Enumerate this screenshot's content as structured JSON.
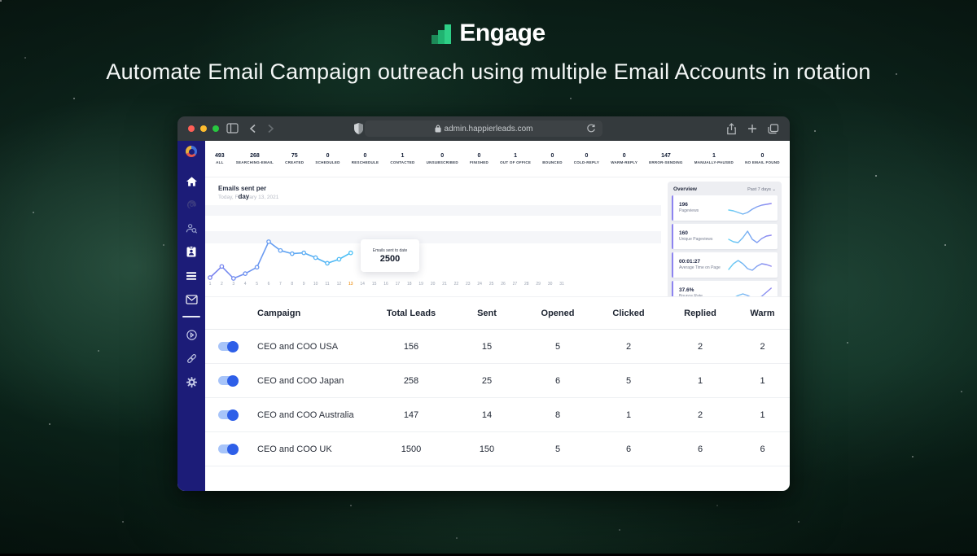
{
  "hero": {
    "brand": "Engage",
    "tagline": "Automate Email Campaign outreach using multiple Email Accounts in rotation",
    "brand_colors": [
      "#1d8a58",
      "#21b371",
      "#2ecf86"
    ]
  },
  "browser": {
    "url": "admin.happierleads.com",
    "traffic_lights": [
      "#ff5f57",
      "#febc2e",
      "#28c840"
    ]
  },
  "stats": [
    {
      "value": "493",
      "label": "ALL"
    },
    {
      "value": "268",
      "label": "SEARCHING-EMAIL"
    },
    {
      "value": "75",
      "label": "CREATED"
    },
    {
      "value": "0",
      "label": "SCHEDULED"
    },
    {
      "value": "0",
      "label": "RESCHEDULE"
    },
    {
      "value": "1",
      "label": "CONTACTED"
    },
    {
      "value": "0",
      "label": "UNSUBSCRIBED"
    },
    {
      "value": "0",
      "label": "FINISHED"
    },
    {
      "value": "1",
      "label": "OUT OF OFFICE"
    },
    {
      "value": "0",
      "label": "BOUNCED"
    },
    {
      "value": "0",
      "label": "COLD-REPLY"
    },
    {
      "value": "0",
      "label": "WARM-REPLY"
    },
    {
      "value": "147",
      "label": "ERROR-SENDING"
    },
    {
      "value": "1",
      "label": "MANUALLY-PAUSED"
    },
    {
      "value": "0",
      "label": "NO EMAIL FOUND"
    }
  ],
  "chart": {
    "title_line1": "Emails sent per",
    "title_word_overlap": "day",
    "subtitle_left": "Today, F",
    "subtitle_right": "ary 13, 2021",
    "axis_start": 1,
    "axis_end": 31,
    "highlight_day": 13,
    "tooltip_label": "Emails sent to date",
    "tooltip_value": "2500"
  },
  "chart_data": {
    "type": "line",
    "title": "Emails sent per day",
    "subtitle": "Today, February 13, 2021",
    "x": [
      1,
      2,
      3,
      4,
      5,
      6,
      7,
      8,
      9,
      10,
      11,
      12,
      13
    ],
    "values": [
      2,
      30,
      0,
      12,
      28,
      92,
      70,
      62,
      64,
      52,
      38,
      48,
      64
    ],
    "xlim": [
      1,
      31
    ],
    "ylim": [
      0,
      100
    ],
    "highlighted_x": 13,
    "annotation": {
      "label": "Emails sent to date",
      "value": "2500"
    },
    "line_gradient": [
      "#7c82ee",
      "#49c2f6"
    ],
    "grid": false
  },
  "overview": {
    "title": "Overview",
    "range": "Past 7 days",
    "range_caret": "⌄",
    "accent_color": "#8d84f0",
    "cards": [
      {
        "value": "196",
        "label": "Pageviews",
        "spark": [
          12,
          13,
          15,
          17,
          15,
          11,
          8,
          6,
          5,
          4
        ]
      },
      {
        "value": "160",
        "label": "Unique Pageviews",
        "spark": [
          13,
          16,
          17,
          11,
          3,
          13,
          17,
          12,
          9,
          8
        ]
      },
      {
        "value": "00:01:27",
        "label": "Average Time on Page",
        "spark": [
          15,
          8,
          4,
          8,
          14,
          16,
          11,
          8,
          9,
          11
        ]
      },
      {
        "value": "37.6%",
        "label": "Bounce Rate",
        "spark": [
          14,
          15,
          12,
          10,
          12,
          15,
          16,
          13,
          8,
          3
        ]
      }
    ]
  },
  "table": {
    "headers": [
      "Campaign",
      "Total Leads",
      "Sent",
      "Opened",
      "Clicked",
      "Replied",
      "Warm"
    ],
    "rows": [
      {
        "enabled": true,
        "campaign": "CEO and COO USA",
        "total_leads": "156",
        "sent": "15",
        "opened": "5",
        "clicked": "2",
        "replied": "2",
        "warm": "2"
      },
      {
        "enabled": true,
        "campaign": "CEO and COO Japan",
        "total_leads": "258",
        "sent": "25",
        "opened": "6",
        "clicked": "5",
        "replied": "1",
        "warm": "1"
      },
      {
        "enabled": true,
        "campaign": "CEO and COO Australia",
        "total_leads": "147",
        "sent": "14",
        "opened": "8",
        "clicked": "1",
        "replied": "2",
        "warm": "1"
      },
      {
        "enabled": true,
        "campaign": "CEO and COO UK",
        "total_leads": "1500",
        "sent": "150",
        "opened": "5",
        "clicked": "6",
        "replied": "6",
        "warm": "6"
      }
    ]
  },
  "sidebar_icons": [
    "app-logo",
    "home",
    "fingerprint",
    "user-search",
    "contact-card",
    "list",
    "mail",
    "history",
    "link",
    "settings"
  ]
}
